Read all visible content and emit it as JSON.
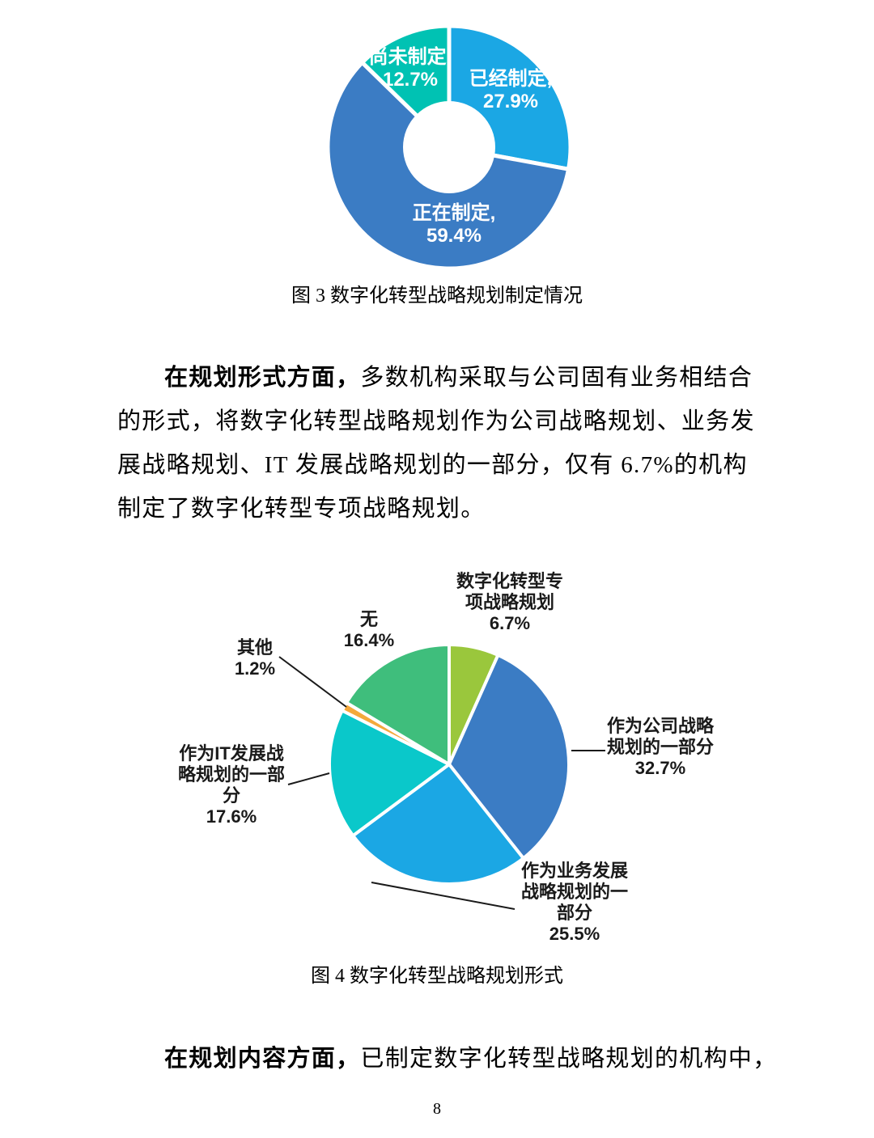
{
  "page": {
    "number": "8"
  },
  "figure3": {
    "caption": "图 3 数字化转型战略规划制定情况",
    "labels": {
      "not_yet": {
        "line1": "尚未制定,",
        "line2": "12.7%"
      },
      "done": {
        "line1": "已经制定,",
        "line2": "27.9%"
      },
      "in_progress": {
        "line1": "正在制定,",
        "line2": "59.4%"
      }
    }
  },
  "figure4": {
    "caption": "图 4 数字化转型战略规划形式",
    "labels": {
      "special": {
        "line1": "数字化转型专",
        "line2": "项战略规划",
        "line3": "6.7%"
      },
      "none": {
        "line1": "无",
        "line2": "16.4%"
      },
      "other": {
        "line1": "其他",
        "line2": "1.2%"
      },
      "it": {
        "line1": "作为IT发展战",
        "line2": "略规划的一部",
        "line3": "分",
        "line4": "17.6%"
      },
      "company": {
        "line1": "作为公司战略",
        "line2": "规划的一部分",
        "line3": "32.7%"
      },
      "business": {
        "line1": "作为业务发展",
        "line2": "战略规划的一",
        "line3": "部分",
        "line4": "25.5%"
      }
    }
  },
  "paragraph1": {
    "line1_bold": "在规划形式方面，",
    "line1_rest": "多数机构采取与公司固有业务相结合",
    "line2": "的形式，将数字化转型战略规划作为公司战略规划、业务发",
    "line3": "展战略规划、IT 发展战略规划的一部分，仅有 6.7%的机构",
    "line4": "制定了数字化转型专项战略规划。"
  },
  "paragraph2": {
    "bold": "在规划内容方面，",
    "rest": "已制定数字化转型战略规划的机构中，"
  },
  "chart_data": [
    {
      "type": "pie",
      "variant": "donut",
      "title": "图 3 数字化转型战略规划制定情况",
      "unit": "%",
      "start_angle_deg": 0,
      "direction": "clockwise",
      "inner_radius_ratio": 0.38,
      "legend": "none",
      "data_label_format": "label, value%",
      "slices": [
        {
          "label": "已经制定",
          "value": 27.9,
          "color": "#1BA7E4"
        },
        {
          "label": "正在制定",
          "value": 59.4,
          "color": "#3B7CC4"
        },
        {
          "label": "尚未制定",
          "value": 12.7,
          "color": "#00C2B3"
        }
      ]
    },
    {
      "type": "pie",
      "title": "图 4 数字化转型战略规划形式",
      "unit": "%",
      "start_angle_deg": 0,
      "direction": "clockwise",
      "legend": "none",
      "data_label_format": "label value%",
      "slices": [
        {
          "label": "数字化转型专项战略规划",
          "value": 6.7,
          "color": "#9AC73C"
        },
        {
          "label": "作为公司战略规划的一部分",
          "value": 32.7,
          "color": "#3B7CC4"
        },
        {
          "label": "作为业务发展战略规划的一部分",
          "value": 25.5,
          "color": "#1BA7E4"
        },
        {
          "label": "作为IT发展战略规划的一部分",
          "value": 17.6,
          "color": "#0AC8CA"
        },
        {
          "label": "其他",
          "value": 1.2,
          "color": "#F4A93B"
        },
        {
          "label": "无",
          "value": 16.4,
          "color": "#3FBE7C"
        }
      ]
    }
  ]
}
